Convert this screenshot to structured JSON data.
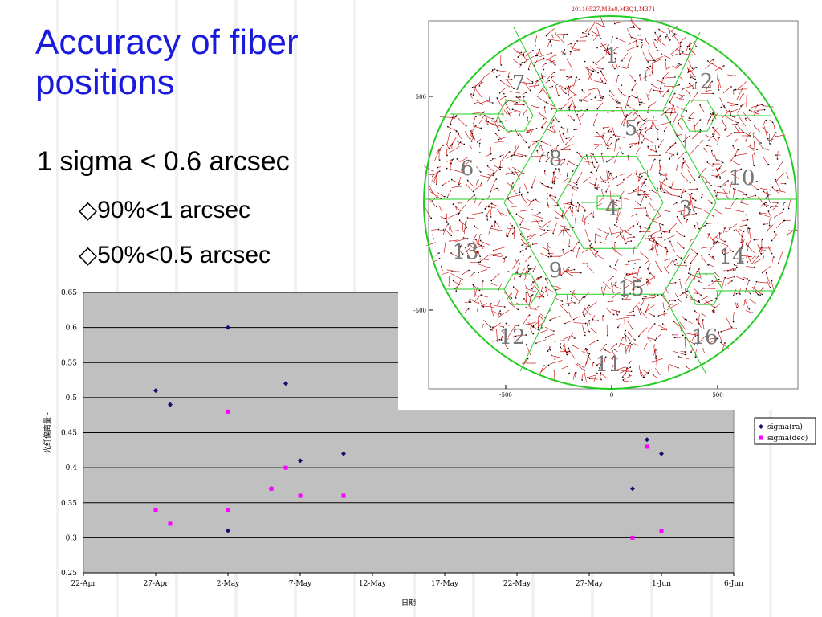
{
  "slide": {
    "title": "Accuracy of fiber positions",
    "bullets": [
      "1 sigma < 0.6 arcsec",
      "◇90%<1 arcsec",
      "◇50%<0.5 arcsec"
    ]
  },
  "inset": {
    "header": "20110527,M3a0,M3Q1,M371",
    "axis_ticks_x": [
      "-500",
      "0",
      "500"
    ],
    "axis_ticks_y": [
      "500",
      "-500"
    ],
    "unit_labels": [
      "1",
      "2",
      "3",
      "4",
      "5",
      "6",
      "7",
      "8",
      "9",
      "10",
      "11",
      "12",
      "13",
      "14",
      "15",
      "16"
    ]
  },
  "colors": {
    "title": "#1a1adc",
    "ra": "#101070",
    "dec": "#ff00ff",
    "plot_bg": "#c0c0c0",
    "boundary": "#22cc22",
    "vectors": "#cc0000"
  },
  "chart_data": {
    "type": "scatter",
    "title": "",
    "xlabel": "日期",
    "ylabel": "光纤偏离量 -",
    "x_tick_labels": [
      "22-Apr",
      "27-Apr",
      "2-May",
      "7-May",
      "12-May",
      "17-May",
      "22-May",
      "27-May",
      "1-Jun",
      "6-Jun"
    ],
    "y_tick_labels": [
      "0.65",
      "0.6",
      "0.55",
      "0.5",
      "0.45",
      "0.4",
      "0.35",
      "0.3",
      "0.25"
    ],
    "ylim": [
      0.25,
      0.65
    ],
    "x_range_days": [
      "22-Apr",
      "6-Jun"
    ],
    "grid": "horizontal",
    "legend_position": "right",
    "series": [
      {
        "name": "sigma(ra)",
        "marker": "diamond",
        "points": [
          {
            "x": "27-Apr",
            "y": 0.51
          },
          {
            "x": "28-Apr",
            "y": 0.49
          },
          {
            "x": "2-May",
            "y": 0.6
          },
          {
            "x": "2-May",
            "y": 0.31
          },
          {
            "x": "5-May",
            "y": 0.37
          },
          {
            "x": "6-May",
            "y": 0.52
          },
          {
            "x": "7-May",
            "y": 0.41
          },
          {
            "x": "10-May",
            "y": 0.42
          },
          {
            "x": "30-May",
            "y": 0.37
          },
          {
            "x": "31-May",
            "y": 0.44
          },
          {
            "x": "1-Jun",
            "y": 0.42
          }
        ]
      },
      {
        "name": "sigma(dec)",
        "marker": "square",
        "points": [
          {
            "x": "27-Apr",
            "y": 0.34
          },
          {
            "x": "28-Apr",
            "y": 0.32
          },
          {
            "x": "2-May",
            "y": 0.48
          },
          {
            "x": "2-May",
            "y": 0.34
          },
          {
            "x": "5-May",
            "y": 0.37
          },
          {
            "x": "6-May",
            "y": 0.4
          },
          {
            "x": "7-May",
            "y": 0.36
          },
          {
            "x": "10-May",
            "y": 0.36
          },
          {
            "x": "30-May",
            "y": 0.3
          },
          {
            "x": "31-May",
            "y": 0.43
          },
          {
            "x": "1-Jun",
            "y": 0.31
          }
        ]
      }
    ]
  }
}
